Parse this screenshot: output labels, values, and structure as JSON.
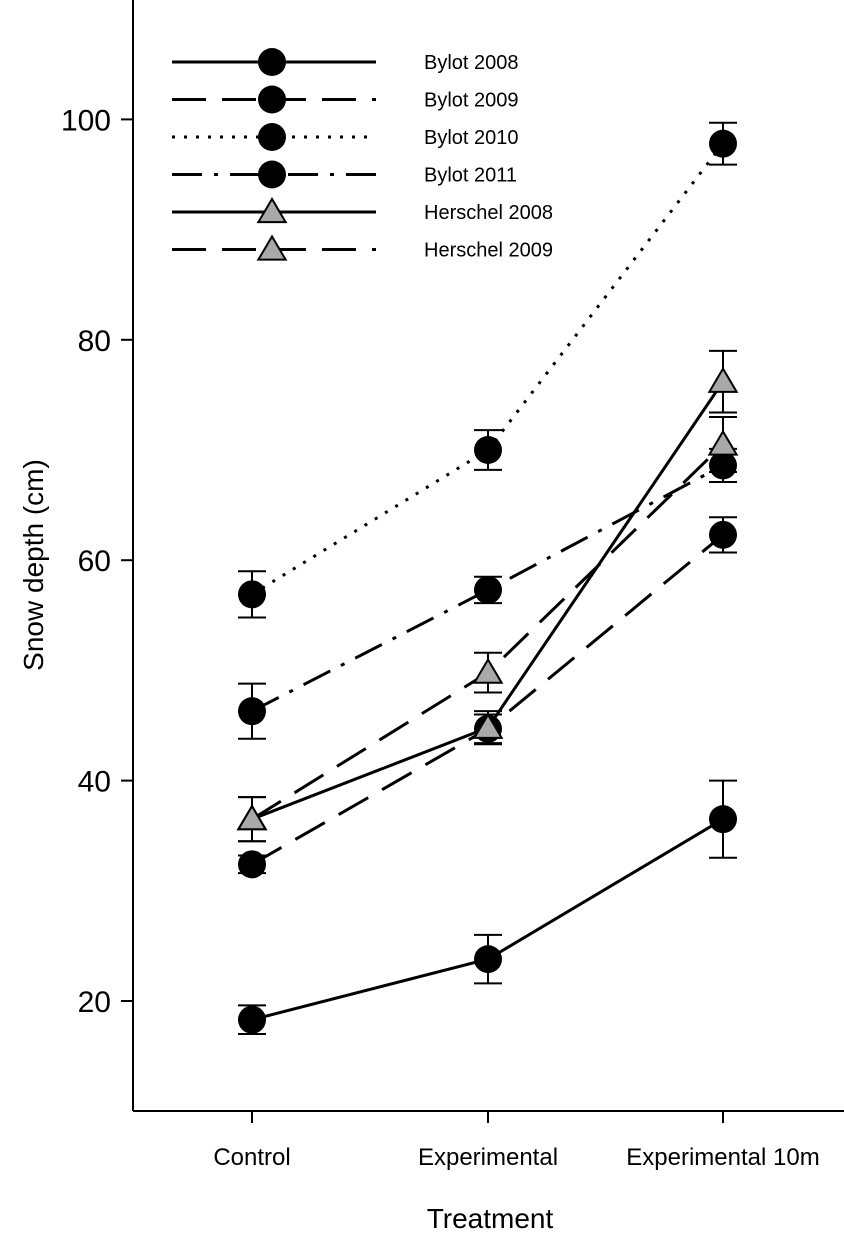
{
  "chart_data": {
    "type": "line",
    "title": "",
    "xlabel": "Treatment",
    "ylabel": "Snow depth (cm)",
    "categories": [
      "Control",
      "Experimental",
      "Experimental 10m"
    ],
    "ylim": [
      10,
      110
    ],
    "yticks": [
      20,
      40,
      60,
      80,
      100
    ],
    "grid": false,
    "legend_position": "top-left",
    "series": [
      {
        "name": "Bylot 2008",
        "marker": "circle",
        "dash": "solid",
        "values": [
          18.3,
          23.8,
          36.5
        ],
        "errors": [
          1.3,
          2.2,
          3.5
        ]
      },
      {
        "name": "Bylot 2009",
        "marker": "circle",
        "dash": "longdash",
        "values": [
          32.4,
          44.7,
          62.3
        ],
        "errors": [
          0.8,
          1.3,
          1.6
        ]
      },
      {
        "name": "Bylot 2010",
        "marker": "circle",
        "dash": "dotted",
        "values": [
          56.9,
          70.0,
          97.8
        ],
        "errors": [
          2.1,
          1.8,
          1.9
        ]
      },
      {
        "name": "Bylot 2011",
        "marker": "circle",
        "dash": "dashdot",
        "values": [
          46.3,
          57.3,
          68.6
        ],
        "errors": [
          2.5,
          1.2,
          1.5
        ]
      },
      {
        "name": "Herschel 2008",
        "marker": "triangle",
        "dash": "solid",
        "values": [
          36.5,
          44.8,
          76.2
        ],
        "errors": [
          2.0,
          1.5,
          2.8
        ]
      },
      {
        "name": "Herschel 2009",
        "marker": "triangle",
        "dash": "longdash",
        "values": [
          36.5,
          49.8,
          70.5
        ],
        "errors": [
          2.0,
          1.8,
          2.5
        ]
      }
    ]
  }
}
